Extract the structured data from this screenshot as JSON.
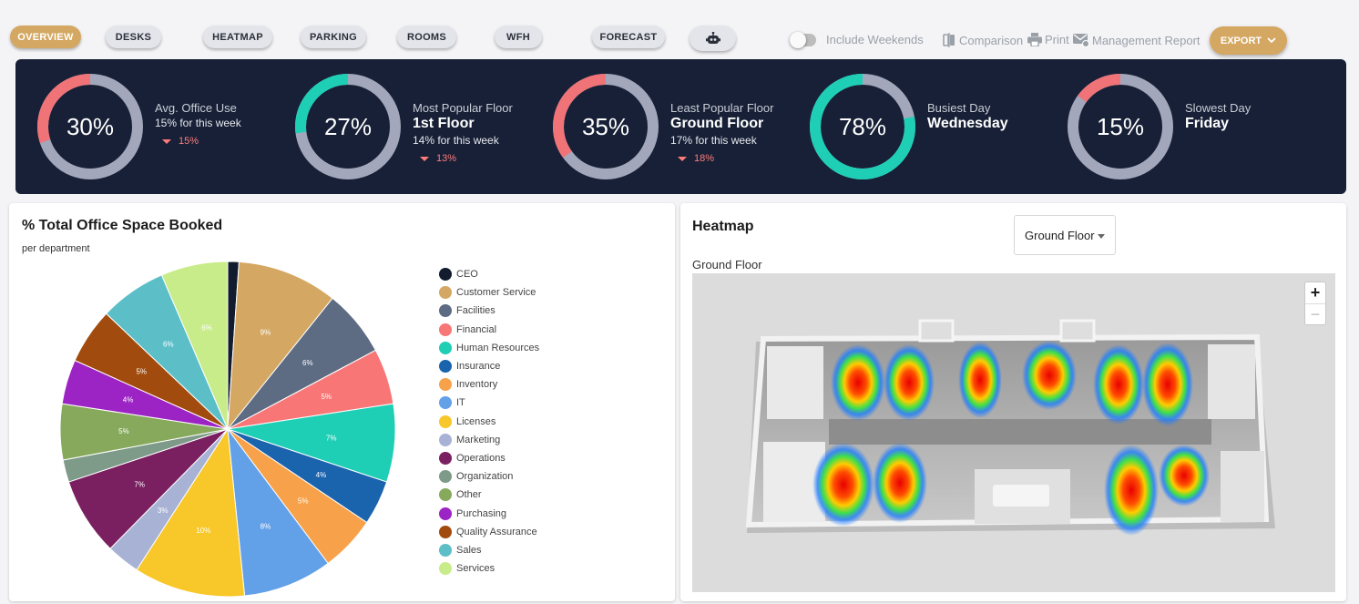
{
  "tabs": [
    "OVERVIEW",
    "DESKS",
    "HEATMAP",
    "PARKING",
    "ROOMS",
    "WFH",
    "FORECAST"
  ],
  "active_tab": "OVERVIEW",
  "robot_icon": "robot-icon",
  "toolbar": {
    "include_weekends": "Include Weekends",
    "comparison": "Comparison",
    "print": "Print",
    "management_report": "Management Report",
    "export": "EXPORT"
  },
  "kpis": [
    {
      "value": "30%",
      "pct": 0.3,
      "color": "#f07378",
      "title": "Avg. Office Use",
      "main": "",
      "sub": "15% for this week",
      "delta": "15%"
    },
    {
      "value": "27%",
      "pct": 0.27,
      "color": "#1ecfb6",
      "title": "Most Popular Floor",
      "main": "1st Floor",
      "sub": "14% for this week",
      "delta": "13%"
    },
    {
      "value": "35%",
      "pct": 0.35,
      "color": "#f07378",
      "title": "Least Popular Floor",
      "main": "Ground Floor",
      "sub": "17% for this week",
      "delta": "18%"
    },
    {
      "value": "78%",
      "pct": 0.78,
      "color": "#1ecfb6",
      "title": "Busiest Day",
      "main": "Wednesday",
      "sub": "",
      "delta": ""
    },
    {
      "value": "15%",
      "pct": 0.15,
      "color": "#f07378",
      "title": "Slowest Day",
      "main": "Friday",
      "sub": "",
      "delta": ""
    }
  ],
  "pie_card": {
    "title": "% Total Office Space Booked",
    "subtitle": "per department"
  },
  "chart_data": {
    "type": "pie",
    "title": "% Total Office Space Booked",
    "subtitle": "per department",
    "legend_position": "right",
    "categories": [
      "CEO",
      "Customer Service",
      "Facilities",
      "Financial",
      "Human Resources",
      "Insurance",
      "Inventory",
      "IT",
      "Licenses",
      "Marketing",
      "Operations",
      "Organization",
      "Other",
      "Purchasing",
      "Quality Assurance",
      "Sales",
      "Services"
    ],
    "values": [
      1,
      9,
      6,
      5,
      7,
      4,
      5,
      8,
      10,
      3,
      7,
      2,
      5,
      4,
      5,
      6,
      6
    ],
    "labels": [
      "",
      "9%",
      "6%",
      "5%",
      "7%",
      "4%",
      "5%",
      "8%",
      "10%",
      "3%",
      "7%",
      "",
      "5%",
      "4%",
      "5%",
      "6%",
      "6%"
    ],
    "colors": [
      "#131c2e",
      "#d4a862",
      "#5d6b83",
      "#f87676",
      "#1ecfb6",
      "#1a63ad",
      "#f7a24a",
      "#62a0e8",
      "#f8c72a",
      "#a8b2d4",
      "#7a2060",
      "#7e9a88",
      "#86a95c",
      "#9c23c4",
      "#a14c0e",
      "#5cbfc8",
      "#c8ec8a"
    ]
  },
  "heatmap_card": {
    "title": "Heatmap",
    "floor_selected": "Ground Floor",
    "floor_label": "Ground Floor",
    "zoom_in": "+",
    "zoom_out": "−"
  }
}
